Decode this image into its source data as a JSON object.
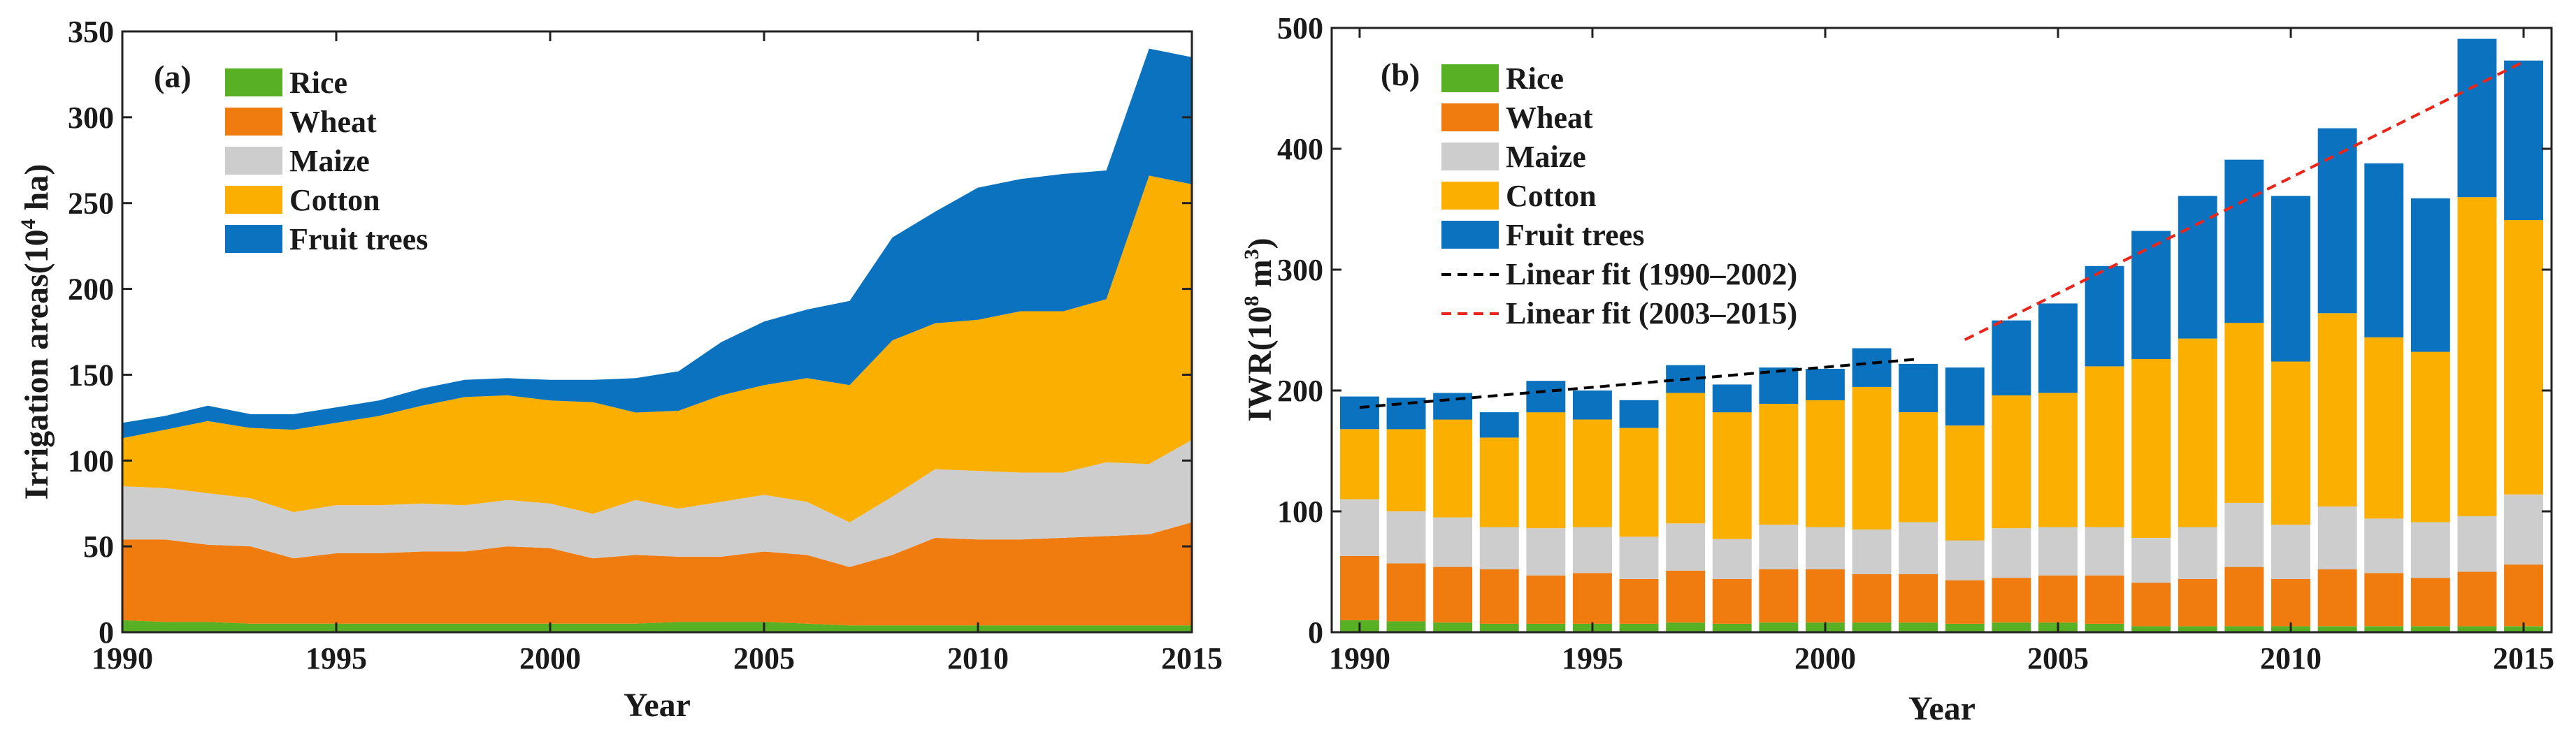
{
  "colors": {
    "rice": "#58B025",
    "wheat": "#F07C10",
    "maize": "#CDCDCD",
    "cotton": "#FBAF00",
    "fruit": "#0A72BF",
    "fit1": "#000000",
    "fit2": "#E8261B"
  },
  "chart_data": [
    {
      "type": "area",
      "stacked": true,
      "panel_label": "(a)",
      "xlabel": "Year",
      "ylabel_main": "Irrigation areas(10",
      "ylabel_sup": "4",
      "ylabel_tail": " ha)",
      "xlim": [
        1990,
        2015
      ],
      "ylim": [
        0,
        350
      ],
      "xticks": [
        "1990",
        "1995",
        "2000",
        "2005",
        "2010",
        "2015"
      ],
      "yticks": [
        "0",
        "50",
        "100",
        "150",
        "200",
        "250",
        "300",
        "350"
      ],
      "legend_position": "top-left",
      "x": [
        1990,
        1991,
        1992,
        1993,
        1994,
        1995,
        1996,
        1997,
        1998,
        1999,
        2000,
        2001,
        2002,
        2003,
        2004,
        2005,
        2006,
        2007,
        2008,
        2009,
        2010,
        2011,
        2012,
        2013,
        2014,
        2015
      ],
      "series": [
        {
          "name": "Rice",
          "key": "rice",
          "values": [
            7,
            6,
            6,
            5,
            5,
            5,
            5,
            5,
            5,
            5,
            5,
            5,
            5,
            6,
            6,
            6,
            5,
            4,
            4,
            4,
            4,
            4,
            4,
            4,
            4,
            4
          ]
        },
        {
          "name": "Wheat",
          "key": "wheat",
          "values": [
            47,
            48,
            45,
            45,
            38,
            41,
            41,
            42,
            42,
            45,
            44,
            38,
            40,
            38,
            38,
            41,
            40,
            34,
            41,
            51,
            50,
            50,
            51,
            52,
            53,
            60
          ]
        },
        {
          "name": "Maize",
          "key": "maize",
          "values": [
            31,
            30,
            30,
            28,
            27,
            28,
            28,
            28,
            27,
            27,
            26,
            26,
            32,
            28,
            32,
            33,
            31,
            26,
            34,
            40,
            40,
            39,
            38,
            43,
            41,
            48
          ]
        },
        {
          "name": "Cotton",
          "key": "cotton",
          "values": [
            28,
            34,
            42,
            41,
            48,
            48,
            52,
            57,
            63,
            61,
            60,
            65,
            51,
            57,
            62,
            64,
            72,
            80,
            91,
            85,
            88,
            94,
            94,
            95,
            168,
            149
          ]
        },
        {
          "name": "Fruit trees",
          "key": "fruit",
          "values": [
            9,
            8,
            9,
            8,
            9,
            9,
            9,
            10,
            10,
            10,
            12,
            13,
            20,
            23,
            31,
            37,
            40,
            49,
            60,
            65,
            77,
            77,
            80,
            75,
            74,
            74
          ]
        }
      ]
    },
    {
      "type": "bar",
      "stacked": true,
      "panel_label": "(b)",
      "xlabel": "Year",
      "ylabel_main": "IWR(10",
      "ylabel_sup": "8",
      "ylabel_mid": " m",
      "ylabel_sup2": "3",
      "ylabel_tail": ")",
      "xlim": [
        1989.4,
        2015.6
      ],
      "ylim": [
        0,
        500
      ],
      "xticks": [
        "1990",
        "1995",
        "2000",
        "2005",
        "2010",
        "2015"
      ],
      "yticks": [
        "0",
        "100",
        "200",
        "300",
        "400",
        "500"
      ],
      "legend_position": "top-left",
      "x": [
        1990,
        1991,
        1992,
        1993,
        1994,
        1995,
        1996,
        1997,
        1998,
        1999,
        2000,
        2001,
        2002,
        2003,
        2004,
        2005,
        2006,
        2007,
        2008,
        2009,
        2010,
        2011,
        2012,
        2013,
        2014,
        2015
      ],
      "series": [
        {
          "name": "Rice",
          "key": "rice",
          "values": [
            10,
            9,
            8,
            7,
            7,
            7,
            7,
            8,
            7,
            8,
            8,
            8,
            8,
            7,
            8,
            8,
            7,
            5,
            5,
            5,
            5,
            5,
            5,
            5,
            5,
            5
          ]
        },
        {
          "name": "Wheat",
          "key": "wheat",
          "values": [
            53,
            48,
            46,
            45,
            40,
            42,
            37,
            43,
            37,
            44,
            44,
            40,
            40,
            36,
            37,
            39,
            40,
            36,
            39,
            49,
            39,
            47,
            44,
            40,
            45,
            51
          ]
        },
        {
          "name": "Maize",
          "key": "maize",
          "values": [
            47,
            43,
            41,
            35,
            39,
            38,
            35,
            39,
            33,
            37,
            35,
            37,
            43,
            33,
            41,
            40,
            40,
            37,
            43,
            53,
            45,
            52,
            45,
            46,
            46,
            58
          ]
        },
        {
          "name": "Cotton",
          "key": "cotton",
          "values": [
            58,
            68,
            81,
            74,
            96,
            89,
            90,
            108,
            105,
            100,
            105,
            118,
            91,
            95,
            110,
            111,
            133,
            148,
            156,
            149,
            135,
            160,
            150,
            141,
            264,
            227
          ]
        },
        {
          "name": "Fruit trees",
          "key": "fruit",
          "values": [
            27,
            26,
            22,
            21,
            26,
            24,
            23,
            23,
            23,
            30,
            26,
            32,
            40,
            48,
            62,
            74,
            83,
            106,
            118,
            135,
            137,
            153,
            144,
            127,
            131,
            132
          ]
        }
      ],
      "fits": [
        {
          "name": "Linear fit (1990–2002)",
          "key": "fit1",
          "x": [
            1990,
            2002
          ],
          "y": [
            186,
            226
          ]
        },
        {
          "name": "Linear fit (2003–2015)",
          "key": "fit2",
          "x": [
            2003,
            2015
          ],
          "y": [
            242,
            472
          ]
        }
      ]
    }
  ]
}
